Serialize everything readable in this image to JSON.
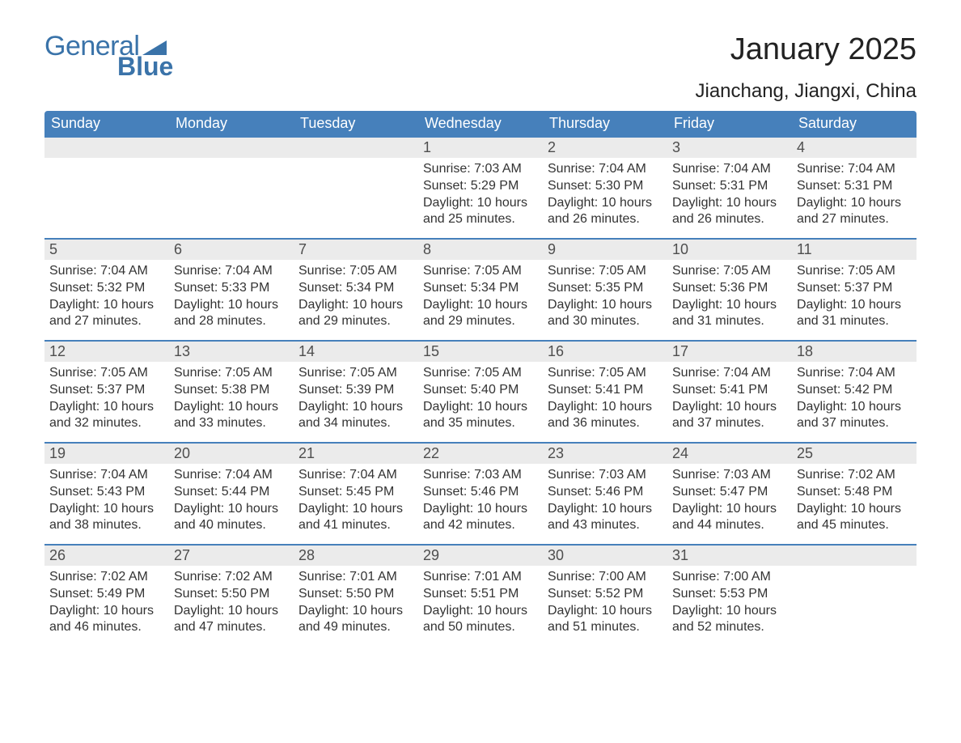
{
  "brand": {
    "text_general": "General",
    "text_blue": "Blue",
    "brand_color": "#3a73a9"
  },
  "title": "January 2025",
  "location": "Jianchang, Jiangxi, China",
  "colors": {
    "header_bg": "#4680bb",
    "header_text": "#ffffff",
    "day_num_bg": "#ebebeb",
    "day_num_text": "#4e4e4e",
    "row_border": "#4680bb",
    "body_text": "#333333",
    "background": "#ffffff"
  },
  "typography": {
    "title_fontsize": 38,
    "location_fontsize": 24,
    "day_header_fontsize": 18,
    "day_num_fontsize": 18,
    "body_fontsize": 16
  },
  "day_headers": [
    "Sunday",
    "Monday",
    "Tuesday",
    "Wednesday",
    "Thursday",
    "Friday",
    "Saturday"
  ],
  "weeks": [
    [
      null,
      null,
      null,
      {
        "n": "1",
        "sunrise": "Sunrise: 7:03 AM",
        "sunset": "Sunset: 5:29 PM",
        "daylight": "Daylight: 10 hours and 25 minutes."
      },
      {
        "n": "2",
        "sunrise": "Sunrise: 7:04 AM",
        "sunset": "Sunset: 5:30 PM",
        "daylight": "Daylight: 10 hours and 26 minutes."
      },
      {
        "n": "3",
        "sunrise": "Sunrise: 7:04 AM",
        "sunset": "Sunset: 5:31 PM",
        "daylight": "Daylight: 10 hours and 26 minutes."
      },
      {
        "n": "4",
        "sunrise": "Sunrise: 7:04 AM",
        "sunset": "Sunset: 5:31 PM",
        "daylight": "Daylight: 10 hours and 27 minutes."
      }
    ],
    [
      {
        "n": "5",
        "sunrise": "Sunrise: 7:04 AM",
        "sunset": "Sunset: 5:32 PM",
        "daylight": "Daylight: 10 hours and 27 minutes."
      },
      {
        "n": "6",
        "sunrise": "Sunrise: 7:04 AM",
        "sunset": "Sunset: 5:33 PM",
        "daylight": "Daylight: 10 hours and 28 minutes."
      },
      {
        "n": "7",
        "sunrise": "Sunrise: 7:05 AM",
        "sunset": "Sunset: 5:34 PM",
        "daylight": "Daylight: 10 hours and 29 minutes."
      },
      {
        "n": "8",
        "sunrise": "Sunrise: 7:05 AM",
        "sunset": "Sunset: 5:34 PM",
        "daylight": "Daylight: 10 hours and 29 minutes."
      },
      {
        "n": "9",
        "sunrise": "Sunrise: 7:05 AM",
        "sunset": "Sunset: 5:35 PM",
        "daylight": "Daylight: 10 hours and 30 minutes."
      },
      {
        "n": "10",
        "sunrise": "Sunrise: 7:05 AM",
        "sunset": "Sunset: 5:36 PM",
        "daylight": "Daylight: 10 hours and 31 minutes."
      },
      {
        "n": "11",
        "sunrise": "Sunrise: 7:05 AM",
        "sunset": "Sunset: 5:37 PM",
        "daylight": "Daylight: 10 hours and 31 minutes."
      }
    ],
    [
      {
        "n": "12",
        "sunrise": "Sunrise: 7:05 AM",
        "sunset": "Sunset: 5:37 PM",
        "daylight": "Daylight: 10 hours and 32 minutes."
      },
      {
        "n": "13",
        "sunrise": "Sunrise: 7:05 AM",
        "sunset": "Sunset: 5:38 PM",
        "daylight": "Daylight: 10 hours and 33 minutes."
      },
      {
        "n": "14",
        "sunrise": "Sunrise: 7:05 AM",
        "sunset": "Sunset: 5:39 PM",
        "daylight": "Daylight: 10 hours and 34 minutes."
      },
      {
        "n": "15",
        "sunrise": "Sunrise: 7:05 AM",
        "sunset": "Sunset: 5:40 PM",
        "daylight": "Daylight: 10 hours and 35 minutes."
      },
      {
        "n": "16",
        "sunrise": "Sunrise: 7:05 AM",
        "sunset": "Sunset: 5:41 PM",
        "daylight": "Daylight: 10 hours and 36 minutes."
      },
      {
        "n": "17",
        "sunrise": "Sunrise: 7:04 AM",
        "sunset": "Sunset: 5:41 PM",
        "daylight": "Daylight: 10 hours and 37 minutes."
      },
      {
        "n": "18",
        "sunrise": "Sunrise: 7:04 AM",
        "sunset": "Sunset: 5:42 PM",
        "daylight": "Daylight: 10 hours and 37 minutes."
      }
    ],
    [
      {
        "n": "19",
        "sunrise": "Sunrise: 7:04 AM",
        "sunset": "Sunset: 5:43 PM",
        "daylight": "Daylight: 10 hours and 38 minutes."
      },
      {
        "n": "20",
        "sunrise": "Sunrise: 7:04 AM",
        "sunset": "Sunset: 5:44 PM",
        "daylight": "Daylight: 10 hours and 40 minutes."
      },
      {
        "n": "21",
        "sunrise": "Sunrise: 7:04 AM",
        "sunset": "Sunset: 5:45 PM",
        "daylight": "Daylight: 10 hours and 41 minutes."
      },
      {
        "n": "22",
        "sunrise": "Sunrise: 7:03 AM",
        "sunset": "Sunset: 5:46 PM",
        "daylight": "Daylight: 10 hours and 42 minutes."
      },
      {
        "n": "23",
        "sunrise": "Sunrise: 7:03 AM",
        "sunset": "Sunset: 5:46 PM",
        "daylight": "Daylight: 10 hours and 43 minutes."
      },
      {
        "n": "24",
        "sunrise": "Sunrise: 7:03 AM",
        "sunset": "Sunset: 5:47 PM",
        "daylight": "Daylight: 10 hours and 44 minutes."
      },
      {
        "n": "25",
        "sunrise": "Sunrise: 7:02 AM",
        "sunset": "Sunset: 5:48 PM",
        "daylight": "Daylight: 10 hours and 45 minutes."
      }
    ],
    [
      {
        "n": "26",
        "sunrise": "Sunrise: 7:02 AM",
        "sunset": "Sunset: 5:49 PM",
        "daylight": "Daylight: 10 hours and 46 minutes."
      },
      {
        "n": "27",
        "sunrise": "Sunrise: 7:02 AM",
        "sunset": "Sunset: 5:50 PM",
        "daylight": "Daylight: 10 hours and 47 minutes."
      },
      {
        "n": "28",
        "sunrise": "Sunrise: 7:01 AM",
        "sunset": "Sunset: 5:50 PM",
        "daylight": "Daylight: 10 hours and 49 minutes."
      },
      {
        "n": "29",
        "sunrise": "Sunrise: 7:01 AM",
        "sunset": "Sunset: 5:51 PM",
        "daylight": "Daylight: 10 hours and 50 minutes."
      },
      {
        "n": "30",
        "sunrise": "Sunrise: 7:00 AM",
        "sunset": "Sunset: 5:52 PM",
        "daylight": "Daylight: 10 hours and 51 minutes."
      },
      {
        "n": "31",
        "sunrise": "Sunrise: 7:00 AM",
        "sunset": "Sunset: 5:53 PM",
        "daylight": "Daylight: 10 hours and 52 minutes."
      },
      null
    ]
  ]
}
